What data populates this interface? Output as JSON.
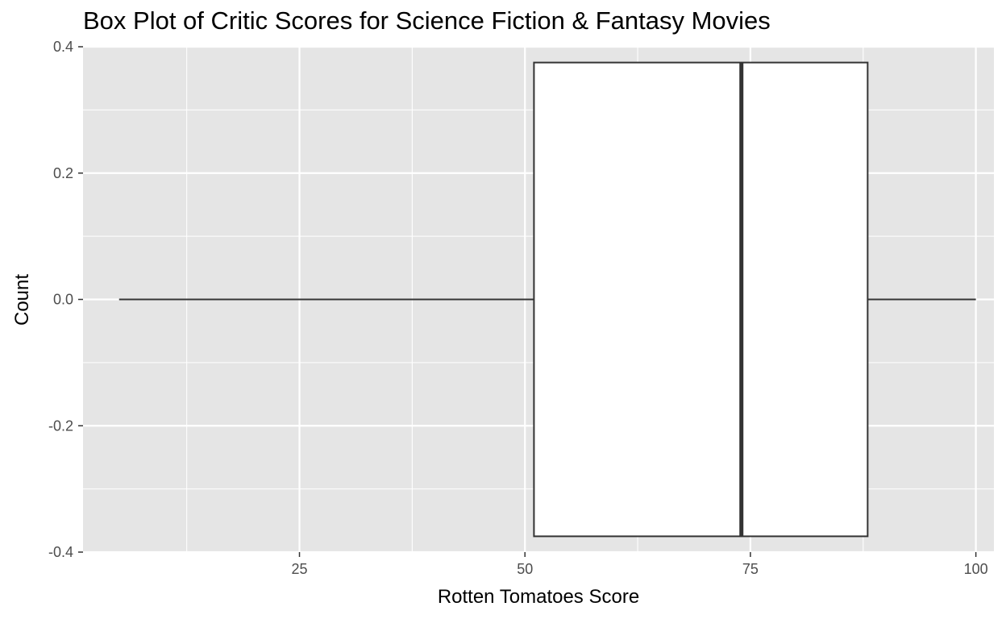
{
  "chart_data": {
    "type": "boxplot",
    "title": "Box Plot of Critic Scores for Science Fiction & Fantasy Movies",
    "xlabel": "Rotten Tomatoes Score",
    "ylabel": "Count",
    "xlim": [
      1,
      102
    ],
    "ylim": [
      -0.4,
      0.4
    ],
    "x_ticks": [
      25,
      50,
      75,
      100
    ],
    "y_ticks": [
      -0.4,
      -0.2,
      0.0,
      0.2,
      0.4
    ],
    "x_tick_labels": [
      "25",
      "50",
      "75",
      "100"
    ],
    "y_tick_labels": [
      "-0.4",
      "-0.2",
      "0.0",
      "0.2",
      "0.4"
    ],
    "box": {
      "min": 5,
      "q1": 51,
      "median": 74,
      "q3": 88,
      "max": 100,
      "y_center": 0.0,
      "half_width": 0.375
    },
    "grid": true,
    "legend": "none"
  },
  "colors": {
    "panel_background": "#e5e5e5",
    "grid": "#ffffff",
    "box_fill": "#ffffff",
    "box_stroke": "#333333",
    "tick_text": "#4d4d4d",
    "title_text": "#000000"
  }
}
